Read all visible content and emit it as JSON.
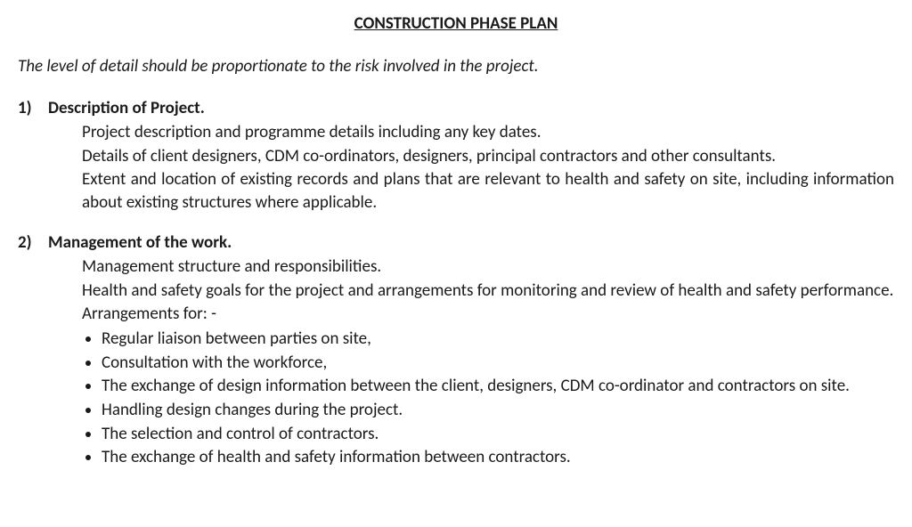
{
  "title": "CONSTRUCTION PHASE PLAN",
  "subtitle": "The level of detail should be proportionate to the risk involved in the project.",
  "sections": [
    {
      "number": "1)",
      "heading": "Description of Project.",
      "paras": {
        "p0": "Project description and programme details including any key dates.",
        "p1": "Details of client designers, CDM co-ordinators, designers, principal contractors and other consultants.",
        "p2": "Extent and location of existing records and plans that are relevant to health and safety on site, including information about existing structures where applicable."
      }
    },
    {
      "number": "2)",
      "heading": "Management of the work.",
      "paras": {
        "p0": "Management structure and responsibilities.",
        "p1": "Health and safety goals for the project and arrangements for monitoring and review of health and safety performance.",
        "p2": "Arrangements for: -"
      },
      "bullets": [
        "Regular liaison between parties on site,",
        "Consultation with the workforce,",
        "The exchange of design information between the client, designers, CDM co-ordinator and contractors on site.",
        "Handling design changes during the project.",
        "The selection and control of contractors.",
        "The exchange of health and safety information between contractors."
      ]
    }
  ]
}
